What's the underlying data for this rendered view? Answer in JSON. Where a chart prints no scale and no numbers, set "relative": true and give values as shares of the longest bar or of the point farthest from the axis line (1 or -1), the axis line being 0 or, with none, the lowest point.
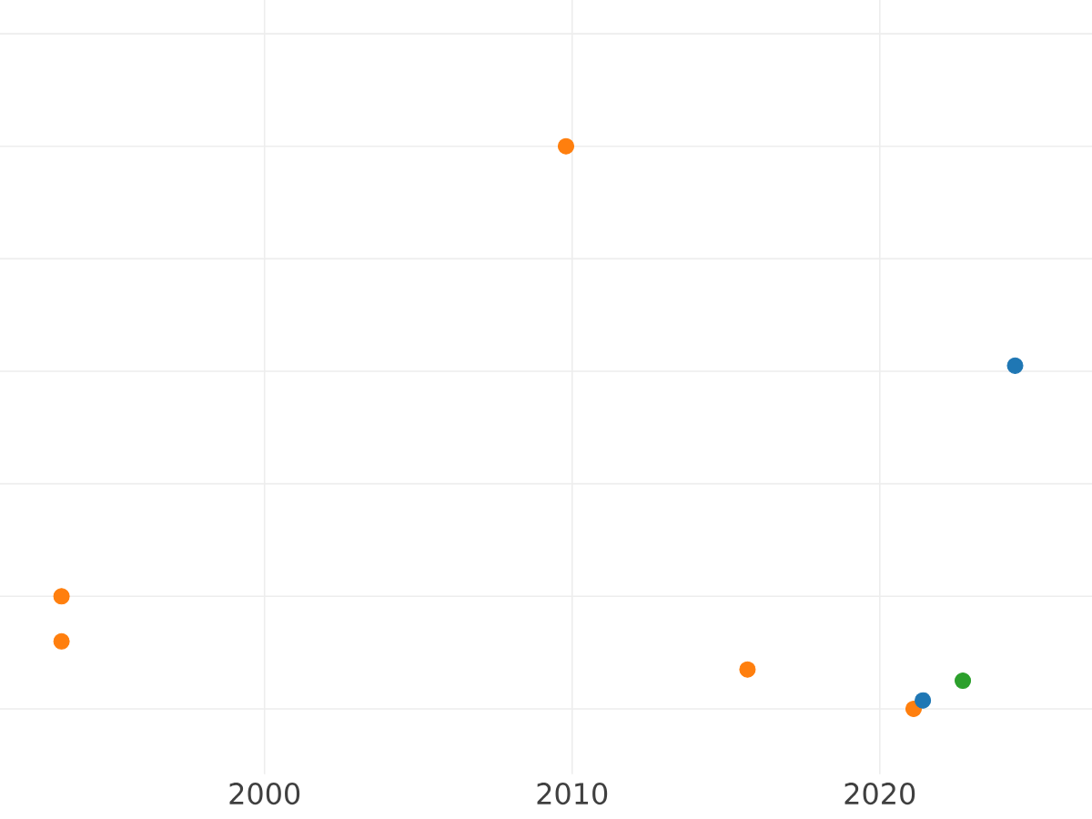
{
  "chart_data": {
    "type": "scatter",
    "relative": true,
    "grid": true,
    "marker": "circle",
    "xlim": [
      1991.4,
      2026.9
    ],
    "xticks": [
      2000,
      2010,
      2020
    ],
    "series": [
      {
        "color": "#ff7f0e",
        "x": [
          2009.8,
          1993.4,
          1993.4,
          2015.7,
          2021.1
        ],
        "values": [
          1,
          0.2,
          0.12,
          0.07,
          0
        ]
      },
      {
        "color": "#1f77b4",
        "x": [
          2021.4,
          2024.4
        ],
        "values": [
          0.015,
          0.61
        ]
      },
      {
        "color": "#2ca02c",
        "x": [
          2022.7
        ],
        "values": [
          0.05
        ]
      }
    ]
  }
}
